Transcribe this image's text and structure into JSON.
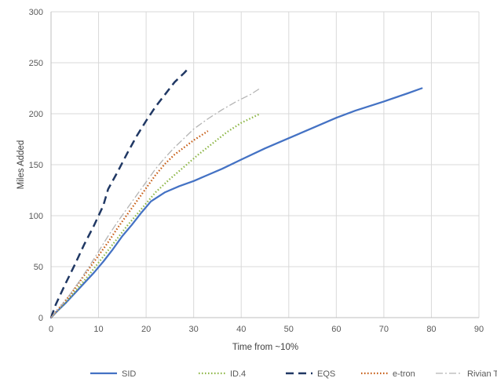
{
  "chart_data": {
    "type": "line",
    "title": "",
    "xlabel": "Time from ~10%",
    "ylabel": "Miles Added",
    "xlim": [
      0,
      90
    ],
    "ylim": [
      0,
      300
    ],
    "xticks": [
      0,
      10,
      20,
      30,
      40,
      50,
      60,
      70,
      80,
      90
    ],
    "yticks": [
      0,
      50,
      100,
      150,
      200,
      250,
      300
    ],
    "grid": true,
    "legend_position": "bottom",
    "series": [
      {
        "name": "SID",
        "color": "#4472c4",
        "dash": "solid",
        "x": [
          0,
          1,
          3,
          5,
          7,
          9,
          11,
          13,
          15,
          17,
          19,
          21,
          24,
          27,
          30,
          33,
          36,
          40,
          45,
          50,
          55,
          60,
          64,
          70,
          75,
          78
        ],
        "y": [
          0,
          5,
          14,
          24,
          34,
          44,
          55,
          67,
          80,
          91,
          103,
          114,
          123,
          129,
          134,
          140,
          146,
          155,
          166,
          176,
          186,
          196,
          203,
          212,
          220,
          225
        ]
      },
      {
        "name": "ID.4",
        "color": "#8db646",
        "dash": "dotted",
        "x": [
          0,
          2,
          4,
          6,
          8,
          10,
          12,
          14,
          16,
          18,
          20,
          22,
          25,
          28,
          31,
          34,
          37,
          40,
          44
        ],
        "y": [
          0,
          10,
          20,
          31,
          42,
          54,
          66,
          78,
          90,
          101,
          112,
          123,
          136,
          148,
          160,
          171,
          182,
          191,
          200
        ]
      },
      {
        "name": "EQS",
        "color": "#203864",
        "dash": "dashed",
        "x": [
          0,
          1,
          3,
          5,
          7,
          9,
          11,
          12,
          14,
          16,
          18,
          20,
          22,
          24,
          26,
          28,
          29
        ],
        "y": [
          0,
          13,
          33,
          52,
          72,
          90,
          110,
          126,
          143,
          161,
          178,
          193,
          207,
          219,
          231,
          240,
          245
        ]
      },
      {
        "name": "e-tron",
        "color": "#c55a11",
        "dash": "dotted",
        "x": [
          0,
          2,
          4,
          6,
          8,
          10,
          12,
          14,
          16,
          18,
          20,
          22,
          24,
          26,
          28,
          30,
          32,
          33
        ],
        "y": [
          0,
          11,
          22,
          35,
          48,
          61,
          74,
          88,
          101,
          114,
          127,
          140,
          151,
          160,
          167,
          174,
          180,
          183
        ]
      },
      {
        "name": "Rivian Target",
        "color": "#b4b4b4",
        "dash": "dashdot",
        "x": [
          0,
          2,
          4,
          6,
          8,
          10,
          12,
          14,
          16,
          18,
          20,
          22,
          24,
          26,
          28,
          30,
          33,
          36,
          39,
          42,
          44
        ],
        "y": [
          0,
          11,
          23,
          36,
          50,
          65,
          80,
          94,
          107,
          120,
          133,
          146,
          157,
          167,
          176,
          185,
          195,
          204,
          212,
          219,
          225
        ]
      }
    ]
  }
}
